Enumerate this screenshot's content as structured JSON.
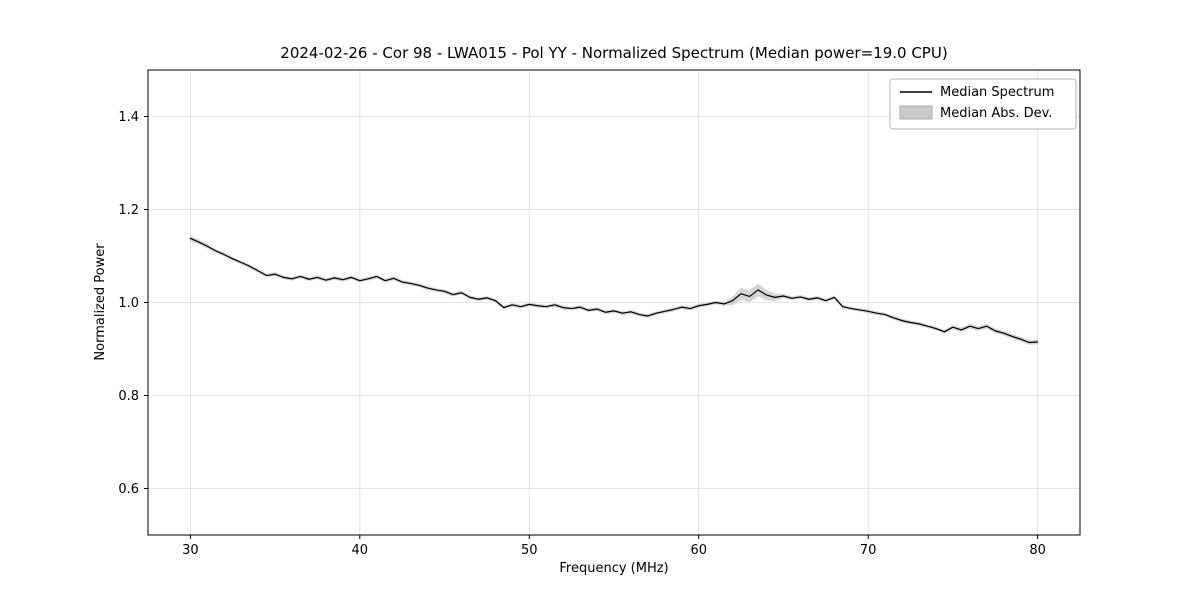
{
  "chart_data": {
    "type": "line",
    "title": "2024-02-26 - Cor 98 - LWA015 - Pol YY - Normalized Spectrum (Median power=19.0 CPU)",
    "xlabel": "Frequency (MHz)",
    "ylabel": "Normalized Power",
    "xlim": [
      27.5,
      82.5
    ],
    "ylim": [
      0.5,
      1.5
    ],
    "xticks": [
      30,
      40,
      50,
      60,
      70,
      80
    ],
    "yticks": [
      0.6,
      0.8,
      1.0,
      1.2,
      1.4
    ],
    "grid": true,
    "legend": {
      "position": "upper right",
      "entries": [
        "Median Spectrum",
        "Median Abs. Dev."
      ]
    },
    "colors": {
      "line": "#000000",
      "band": "#c9c9c9",
      "grid": "#dddddd",
      "frame": "#000000",
      "legend_border": "#b3b3b3"
    },
    "series": [
      {
        "name": "Median Spectrum",
        "style": "line",
        "x": [
          30.0,
          30.5,
          31.0,
          31.5,
          32.0,
          32.5,
          33.0,
          33.5,
          34.0,
          34.5,
          35.0,
          35.5,
          36.0,
          36.5,
          37.0,
          37.5,
          38.0,
          38.5,
          39.0,
          39.5,
          40.0,
          40.5,
          41.0,
          41.5,
          42.0,
          42.5,
          43.0,
          43.5,
          44.0,
          44.5,
          45.0,
          45.5,
          46.0,
          46.5,
          47.0,
          47.5,
          48.0,
          48.5,
          49.0,
          49.5,
          50.0,
          50.5,
          51.0,
          51.5,
          52.0,
          52.5,
          53.0,
          53.5,
          54.0,
          54.5,
          55.0,
          55.5,
          56.0,
          56.5,
          57.0,
          57.5,
          58.0,
          58.5,
          59.0,
          59.5,
          60.0,
          60.5,
          61.0,
          61.5,
          62.0,
          62.5,
          63.0,
          63.5,
          64.0,
          64.5,
          65.0,
          65.5,
          66.0,
          66.5,
          67.0,
          67.5,
          68.0,
          68.5,
          69.0,
          69.5,
          70.0,
          70.5,
          71.0,
          71.5,
          72.0,
          72.5,
          73.0,
          73.5,
          74.0,
          74.5,
          75.0,
          75.5,
          76.0,
          76.5,
          77.0,
          77.5,
          78.0,
          78.5,
          79.0,
          79.5,
          80.0
        ],
        "y": [
          1.138,
          1.13,
          1.121,
          1.111,
          1.103,
          1.094,
          1.086,
          1.078,
          1.068,
          1.058,
          1.061,
          1.054,
          1.051,
          1.056,
          1.05,
          1.054,
          1.048,
          1.053,
          1.049,
          1.054,
          1.047,
          1.051,
          1.056,
          1.047,
          1.052,
          1.044,
          1.041,
          1.037,
          1.031,
          1.027,
          1.024,
          1.017,
          1.021,
          1.011,
          1.007,
          1.01,
          1.004,
          0.989,
          0.995,
          0.991,
          0.996,
          0.993,
          0.991,
          0.995,
          0.989,
          0.987,
          0.99,
          0.983,
          0.986,
          0.979,
          0.982,
          0.977,
          0.98,
          0.974,
          0.971,
          0.977,
          0.981,
          0.985,
          0.99,
          0.987,
          0.993,
          0.996,
          1.0,
          0.997,
          1.004,
          1.019,
          1.013,
          1.027,
          1.016,
          1.011,
          1.014,
          1.009,
          1.012,
          1.007,
          1.01,
          1.004,
          1.011,
          0.991,
          0.987,
          0.984,
          0.981,
          0.977,
          0.974,
          0.967,
          0.961,
          0.957,
          0.954,
          0.949,
          0.944,
          0.937,
          0.947,
          0.941,
          0.949,
          0.944,
          0.949,
          0.939,
          0.934,
          0.927,
          0.921,
          0.914,
          0.915
        ]
      },
      {
        "name": "Median Abs. Dev.",
        "style": "band",
        "mad": [
          0.006,
          0.005,
          0.005,
          0.004,
          0.004,
          0.004,
          0.004,
          0.004,
          0.004,
          0.004,
          0.004,
          0.004,
          0.004,
          0.004,
          0.004,
          0.004,
          0.004,
          0.004,
          0.004,
          0.004,
          0.004,
          0.004,
          0.004,
          0.004,
          0.004,
          0.004,
          0.004,
          0.004,
          0.004,
          0.004,
          0.004,
          0.004,
          0.004,
          0.004,
          0.004,
          0.004,
          0.004,
          0.004,
          0.004,
          0.004,
          0.004,
          0.004,
          0.004,
          0.004,
          0.004,
          0.004,
          0.004,
          0.004,
          0.004,
          0.004,
          0.004,
          0.004,
          0.004,
          0.004,
          0.004,
          0.004,
          0.004,
          0.004,
          0.004,
          0.004,
          0.004,
          0.004,
          0.004,
          0.004,
          0.009,
          0.013,
          0.012,
          0.014,
          0.011,
          0.008,
          0.004,
          0.004,
          0.004,
          0.004,
          0.004,
          0.004,
          0.004,
          0.004,
          0.004,
          0.004,
          0.004,
          0.004,
          0.004,
          0.004,
          0.004,
          0.004,
          0.004,
          0.004,
          0.004,
          0.004,
          0.005,
          0.005,
          0.005,
          0.005,
          0.005,
          0.005,
          0.005,
          0.005,
          0.005,
          0.005,
          0.005
        ]
      }
    ]
  }
}
